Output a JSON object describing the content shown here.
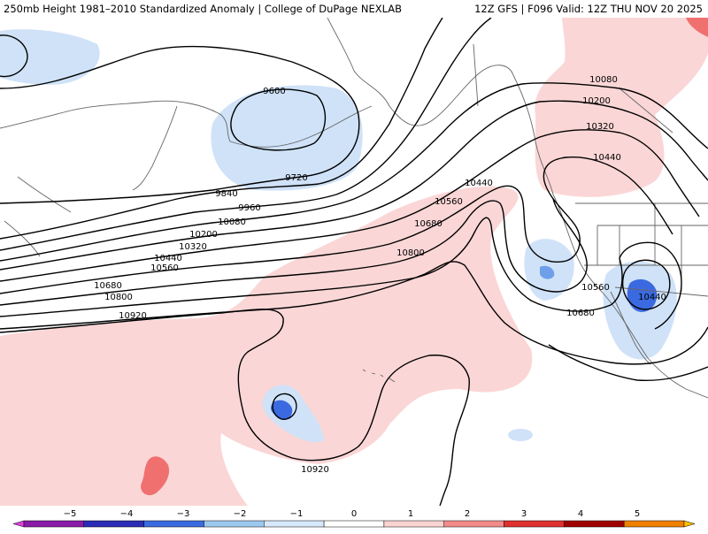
{
  "header": {
    "title_left": "250mb Height 1981–2010 Standardized Anomaly | College of DuPage NEXLAB",
    "title_right": "12Z GFS | F096 Valid: 12Z THU NOV 20 2025"
  },
  "contour_labels": {
    "h9600": "9600",
    "h9720": "9720",
    "h9840": "9840",
    "h9960": "9960",
    "h10080w": "10080",
    "h10200w": "10200",
    "h10320w": "10320",
    "h10440w": "10440",
    "h10560w": "10560",
    "h10680w": "10680",
    "h10800w": "10800",
    "h10920w": "10920",
    "h10800c": "10800",
    "h10440c": "10440",
    "h10560c": "10560",
    "h10680c": "10680",
    "h10080e": "10080",
    "h10200e": "10200",
    "h10320e": "10320",
    "h10440e": "10440",
    "h10560e": "10560",
    "h10680e": "10680",
    "h10440low": "10440",
    "h10920s": "10920"
  },
  "colorbar": {
    "ticks": [
      "−5",
      "−4",
      "−3",
      "−2",
      "−1",
      "0",
      "1",
      "2",
      "3",
      "4",
      "5"
    ],
    "colors": [
      "#e040e0",
      "#8a1aa8",
      "#2b2bb8",
      "#3b6ae0",
      "#9cc8f0",
      "#d6e8fb",
      "#ffffff",
      "#fbd3d3",
      "#f28a8a",
      "#e03030",
      "#a00000",
      "#f08000",
      "#ffc000"
    ]
  },
  "palette": {
    "neg_light": "#cfe2f8",
    "neg_mid": "#6f9fe8",
    "neg_dark": "#2f5fe0",
    "pos_light": "#fbd6d6",
    "pos_mid": "#f07070",
    "coast": "#666666",
    "contour": "#000000"
  }
}
